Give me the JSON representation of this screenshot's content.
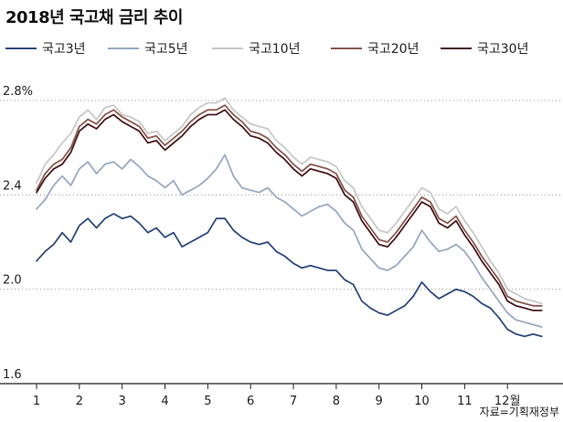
{
  "chart_data": {
    "type": "line",
    "title": "2018년 국고채 금리 추이",
    "ylabel": "",
    "xlabel": "",
    "ylim": [
      1.6,
      2.8
    ],
    "y_ticks": [
      "1.6",
      "2.0",
      "2.4",
      "2.8%"
    ],
    "y_tick_values": [
      1.6,
      2.0,
      2.4,
      2.8
    ],
    "x_ticks": [
      "1",
      "2",
      "3",
      "4",
      "5",
      "6",
      "7",
      "8",
      "9",
      "10",
      "11",
      "12월"
    ],
    "grid": "horizontal dotted",
    "legend": "top",
    "x_unit": "month (decimal)",
    "series": [
      {
        "name": "국고3년",
        "color": "#2e4a7d",
        "points": [
          [
            1.0,
            2.12
          ],
          [
            1.2,
            2.16
          ],
          [
            1.4,
            2.19
          ],
          [
            1.6,
            2.24
          ],
          [
            1.8,
            2.2
          ],
          [
            2.0,
            2.27
          ],
          [
            2.2,
            2.3
          ],
          [
            2.4,
            2.26
          ],
          [
            2.6,
            2.3
          ],
          [
            2.8,
            2.32
          ],
          [
            3.0,
            2.3
          ],
          [
            3.2,
            2.31
          ],
          [
            3.4,
            2.28
          ],
          [
            3.6,
            2.24
          ],
          [
            3.8,
            2.26
          ],
          [
            4.0,
            2.22
          ],
          [
            4.2,
            2.24
          ],
          [
            4.4,
            2.18
          ],
          [
            4.6,
            2.2
          ],
          [
            4.8,
            2.22
          ],
          [
            5.0,
            2.24
          ],
          [
            5.2,
            2.3
          ],
          [
            5.4,
            2.3
          ],
          [
            5.6,
            2.25
          ],
          [
            5.8,
            2.22
          ],
          [
            6.0,
            2.2
          ],
          [
            6.2,
            2.19
          ],
          [
            6.4,
            2.2
          ],
          [
            6.6,
            2.16
          ],
          [
            6.8,
            2.14
          ],
          [
            7.0,
            2.11
          ],
          [
            7.2,
            2.09
          ],
          [
            7.4,
            2.1
          ],
          [
            7.6,
            2.09
          ],
          [
            7.8,
            2.08
          ],
          [
            8.0,
            2.08
          ],
          [
            8.2,
            2.04
          ],
          [
            8.4,
            2.02
          ],
          [
            8.6,
            1.95
          ],
          [
            8.8,
            1.92
          ],
          [
            9.0,
            1.9
          ],
          [
            9.2,
            1.89
          ],
          [
            9.4,
            1.91
          ],
          [
            9.6,
            1.93
          ],
          [
            9.8,
            1.97
          ],
          [
            10.0,
            2.03
          ],
          [
            10.2,
            1.99
          ],
          [
            10.4,
            1.96
          ],
          [
            10.6,
            1.98
          ],
          [
            10.8,
            2.0
          ],
          [
            11.0,
            1.99
          ],
          [
            11.2,
            1.97
          ],
          [
            11.4,
            1.94
          ],
          [
            11.6,
            1.92
          ],
          [
            11.8,
            1.88
          ],
          [
            12.0,
            1.83
          ],
          [
            12.2,
            1.81
          ],
          [
            12.4,
            1.8
          ],
          [
            12.6,
            1.81
          ],
          [
            12.8,
            1.8
          ]
        ]
      },
      {
        "name": "국고5년",
        "color": "#9aaac4",
        "points": [
          [
            1.0,
            2.34
          ],
          [
            1.2,
            2.38
          ],
          [
            1.4,
            2.44
          ],
          [
            1.6,
            2.48
          ],
          [
            1.8,
            2.44
          ],
          [
            2.0,
            2.51
          ],
          [
            2.2,
            2.54
          ],
          [
            2.4,
            2.49
          ],
          [
            2.6,
            2.53
          ],
          [
            2.8,
            2.54
          ],
          [
            3.0,
            2.51
          ],
          [
            3.2,
            2.55
          ],
          [
            3.4,
            2.52
          ],
          [
            3.6,
            2.48
          ],
          [
            3.8,
            2.46
          ],
          [
            4.0,
            2.43
          ],
          [
            4.2,
            2.46
          ],
          [
            4.4,
            2.4
          ],
          [
            4.6,
            2.42
          ],
          [
            4.8,
            2.44
          ],
          [
            5.0,
            2.47
          ],
          [
            5.2,
            2.51
          ],
          [
            5.4,
            2.57
          ],
          [
            5.6,
            2.48
          ],
          [
            5.8,
            2.43
          ],
          [
            6.0,
            2.42
          ],
          [
            6.2,
            2.41
          ],
          [
            6.4,
            2.43
          ],
          [
            6.6,
            2.39
          ],
          [
            6.8,
            2.37
          ],
          [
            7.0,
            2.34
          ],
          [
            7.2,
            2.31
          ],
          [
            7.4,
            2.33
          ],
          [
            7.6,
            2.35
          ],
          [
            7.8,
            2.36
          ],
          [
            8.0,
            2.33
          ],
          [
            8.2,
            2.28
          ],
          [
            8.4,
            2.25
          ],
          [
            8.6,
            2.17
          ],
          [
            8.8,
            2.13
          ],
          [
            9.0,
            2.09
          ],
          [
            9.2,
            2.08
          ],
          [
            9.4,
            2.1
          ],
          [
            9.6,
            2.14
          ],
          [
            9.8,
            2.18
          ],
          [
            10.0,
            2.25
          ],
          [
            10.2,
            2.2
          ],
          [
            10.4,
            2.16
          ],
          [
            10.6,
            2.17
          ],
          [
            10.8,
            2.19
          ],
          [
            11.0,
            2.16
          ],
          [
            11.2,
            2.11
          ],
          [
            11.4,
            2.05
          ],
          [
            11.6,
            2.0
          ],
          [
            11.8,
            1.95
          ],
          [
            12.0,
            1.9
          ],
          [
            12.2,
            1.87
          ],
          [
            12.4,
            1.86
          ],
          [
            12.6,
            1.85
          ],
          [
            12.8,
            1.84
          ]
        ]
      },
      {
        "name": "국고10년",
        "color": "#c9c9c9",
        "points": [
          [
            1.0,
            2.45
          ],
          [
            1.2,
            2.53
          ],
          [
            1.4,
            2.57
          ],
          [
            1.6,
            2.62
          ],
          [
            1.8,
            2.66
          ],
          [
            2.0,
            2.73
          ],
          [
            2.2,
            2.76
          ],
          [
            2.4,
            2.72
          ],
          [
            2.6,
            2.77
          ],
          [
            2.8,
            2.78
          ],
          [
            3.0,
            2.74
          ],
          [
            3.2,
            2.73
          ],
          [
            3.4,
            2.71
          ],
          [
            3.6,
            2.66
          ],
          [
            3.8,
            2.67
          ],
          [
            4.0,
            2.63
          ],
          [
            4.2,
            2.66
          ],
          [
            4.4,
            2.69
          ],
          [
            4.6,
            2.74
          ],
          [
            4.8,
            2.77
          ],
          [
            5.0,
            2.79
          ],
          [
            5.2,
            2.79
          ],
          [
            5.4,
            2.81
          ],
          [
            5.6,
            2.76
          ],
          [
            5.8,
            2.73
          ],
          [
            6.0,
            2.7
          ],
          [
            6.2,
            2.69
          ],
          [
            6.4,
            2.68
          ],
          [
            6.6,
            2.63
          ],
          [
            6.8,
            2.6
          ],
          [
            7.0,
            2.56
          ],
          [
            7.2,
            2.53
          ],
          [
            7.4,
            2.56
          ],
          [
            7.6,
            2.55
          ],
          [
            7.8,
            2.54
          ],
          [
            8.0,
            2.52
          ],
          [
            8.2,
            2.46
          ],
          [
            8.4,
            2.43
          ],
          [
            8.6,
            2.35
          ],
          [
            8.8,
            2.3
          ],
          [
            9.0,
            2.25
          ],
          [
            9.2,
            2.24
          ],
          [
            9.4,
            2.28
          ],
          [
            9.6,
            2.33
          ],
          [
            9.8,
            2.38
          ],
          [
            10.0,
            2.43
          ],
          [
            10.2,
            2.41
          ],
          [
            10.4,
            2.34
          ],
          [
            10.6,
            2.32
          ],
          [
            10.8,
            2.35
          ],
          [
            11.0,
            2.29
          ],
          [
            11.2,
            2.24
          ],
          [
            11.4,
            2.18
          ],
          [
            11.6,
            2.12
          ],
          [
            11.8,
            2.07
          ],
          [
            12.0,
            2.0
          ],
          [
            12.2,
            1.98
          ],
          [
            12.4,
            1.96
          ],
          [
            12.6,
            1.95
          ],
          [
            12.8,
            1.94
          ]
        ]
      },
      {
        "name": "국고20년",
        "color": "#8a5a50",
        "points": [
          [
            1.0,
            2.42
          ],
          [
            1.2,
            2.49
          ],
          [
            1.4,
            2.53
          ],
          [
            1.6,
            2.55
          ],
          [
            1.8,
            2.6
          ],
          [
            2.0,
            2.69
          ],
          [
            2.2,
            2.72
          ],
          [
            2.4,
            2.7
          ],
          [
            2.6,
            2.74
          ],
          [
            2.8,
            2.76
          ],
          [
            3.0,
            2.73
          ],
          [
            3.2,
            2.71
          ],
          [
            3.4,
            2.69
          ],
          [
            3.6,
            2.64
          ],
          [
            3.8,
            2.65
          ],
          [
            4.0,
            2.61
          ],
          [
            4.2,
            2.64
          ],
          [
            4.4,
            2.67
          ],
          [
            4.6,
            2.71
          ],
          [
            4.8,
            2.74
          ],
          [
            5.0,
            2.76
          ],
          [
            5.2,
            2.76
          ],
          [
            5.4,
            2.78
          ],
          [
            5.6,
            2.74
          ],
          [
            5.8,
            2.71
          ],
          [
            6.0,
            2.67
          ],
          [
            6.2,
            2.66
          ],
          [
            6.4,
            2.64
          ],
          [
            6.6,
            2.6
          ],
          [
            6.8,
            2.57
          ],
          [
            7.0,
            2.53
          ],
          [
            7.2,
            2.5
          ],
          [
            7.4,
            2.53
          ],
          [
            7.6,
            2.52
          ],
          [
            7.8,
            2.51
          ],
          [
            8.0,
            2.49
          ],
          [
            8.2,
            2.42
          ],
          [
            8.4,
            2.39
          ],
          [
            8.6,
            2.31
          ],
          [
            8.8,
            2.26
          ],
          [
            9.0,
            2.21
          ],
          [
            9.2,
            2.2
          ],
          [
            9.4,
            2.24
          ],
          [
            9.6,
            2.29
          ],
          [
            9.8,
            2.34
          ],
          [
            10.0,
            2.39
          ],
          [
            10.2,
            2.37
          ],
          [
            10.4,
            2.3
          ],
          [
            10.6,
            2.28
          ],
          [
            10.8,
            2.31
          ],
          [
            11.0,
            2.25
          ],
          [
            11.2,
            2.2
          ],
          [
            11.4,
            2.14
          ],
          [
            11.6,
            2.09
          ],
          [
            11.8,
            2.04
          ],
          [
            12.0,
            1.97
          ],
          [
            12.2,
            1.95
          ],
          [
            12.4,
            1.94
          ],
          [
            12.6,
            1.93
          ],
          [
            12.8,
            1.93
          ]
        ]
      },
      {
        "name": "국고30년",
        "color": "#4a1a1e",
        "points": [
          [
            1.0,
            2.41
          ],
          [
            1.2,
            2.47
          ],
          [
            1.4,
            2.51
          ],
          [
            1.6,
            2.53
          ],
          [
            1.8,
            2.58
          ],
          [
            2.0,
            2.67
          ],
          [
            2.2,
            2.7
          ],
          [
            2.4,
            2.68
          ],
          [
            2.6,
            2.72
          ],
          [
            2.8,
            2.74
          ],
          [
            3.0,
            2.71
          ],
          [
            3.2,
            2.69
          ],
          [
            3.4,
            2.67
          ],
          [
            3.6,
            2.62
          ],
          [
            3.8,
            2.63
          ],
          [
            4.0,
            2.59
          ],
          [
            4.2,
            2.62
          ],
          [
            4.4,
            2.65
          ],
          [
            4.6,
            2.69
          ],
          [
            4.8,
            2.72
          ],
          [
            5.0,
            2.74
          ],
          [
            5.2,
            2.74
          ],
          [
            5.4,
            2.76
          ],
          [
            5.6,
            2.72
          ],
          [
            5.8,
            2.69
          ],
          [
            6.0,
            2.65
          ],
          [
            6.2,
            2.64
          ],
          [
            6.4,
            2.62
          ],
          [
            6.6,
            2.58
          ],
          [
            6.8,
            2.55
          ],
          [
            7.0,
            2.51
          ],
          [
            7.2,
            2.48
          ],
          [
            7.4,
            2.51
          ],
          [
            7.6,
            2.5
          ],
          [
            7.8,
            2.49
          ],
          [
            8.0,
            2.47
          ],
          [
            8.2,
            2.4
          ],
          [
            8.4,
            2.37
          ],
          [
            8.6,
            2.29
          ],
          [
            8.8,
            2.24
          ],
          [
            9.0,
            2.19
          ],
          [
            9.2,
            2.18
          ],
          [
            9.4,
            2.22
          ],
          [
            9.6,
            2.27
          ],
          [
            9.8,
            2.32
          ],
          [
            10.0,
            2.37
          ],
          [
            10.2,
            2.35
          ],
          [
            10.4,
            2.28
          ],
          [
            10.6,
            2.26
          ],
          [
            10.8,
            2.29
          ],
          [
            11.0,
            2.23
          ],
          [
            11.2,
            2.18
          ],
          [
            11.4,
            2.12
          ],
          [
            11.6,
            2.07
          ],
          [
            11.8,
            2.02
          ],
          [
            12.0,
            1.95
          ],
          [
            12.2,
            1.93
          ],
          [
            12.4,
            1.92
          ],
          [
            12.6,
            1.91
          ],
          [
            12.8,
            1.91
          ]
        ]
      }
    ]
  },
  "source_note": "자료=기획재정부"
}
